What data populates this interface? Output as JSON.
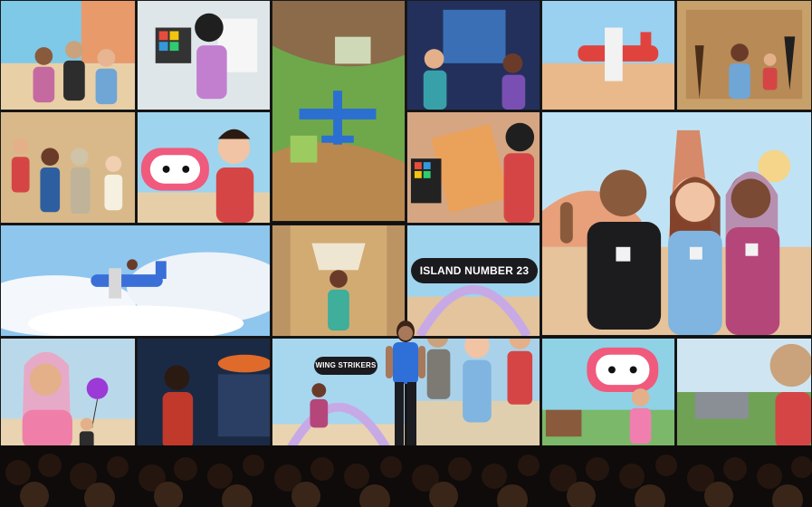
{
  "scene": {
    "description_tags": [
      "video-wall",
      "avatars",
      "stage",
      "audience"
    ],
    "signs": {
      "island": "ISLAND NUMBER 23",
      "wing": "WING STRIKERS"
    },
    "colors": {
      "sky": "#bfe3f5",
      "sand": "#d9b98a",
      "pink": "#f3a0b8",
      "red_shirt": "#d64545",
      "blue_shirt": "#6fa6d6",
      "dark": "#111214"
    }
  }
}
